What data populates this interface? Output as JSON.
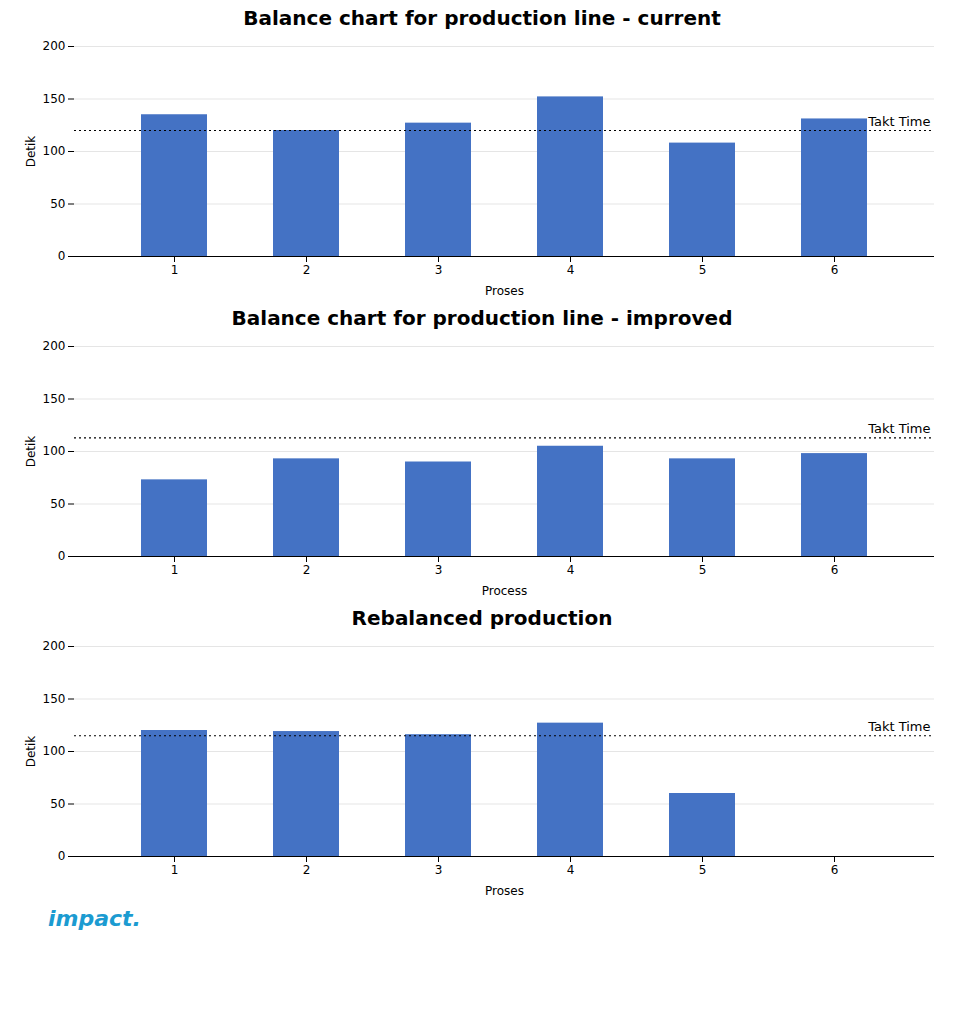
{
  "chart_data": [
    {
      "type": "bar",
      "title": "Balance chart for production line - current",
      "xlabel": "Proses",
      "ylabel": "Detik",
      "categories": [
        1,
        2,
        3,
        4,
        5,
        6
      ],
      "values": [
        135,
        120,
        127,
        152,
        108,
        131
      ],
      "color": "#4472C4",
      "takt_time": 120,
      "takt_label": "Takt Time",
      "ylim": [
        0,
        200
      ],
      "yticks": [
        0,
        50,
        100,
        150,
        200
      ],
      "grid": true
    },
    {
      "type": "bar",
      "title": "Balance chart for production line - improved",
      "xlabel": "Process",
      "ylabel": "Detik",
      "categories": [
        1,
        2,
        3,
        4,
        5,
        6
      ],
      "values": [
        73,
        93,
        90,
        105,
        93,
        98
      ],
      "color": "#4472C4",
      "takt_time": 113,
      "takt_label": "Takt Time",
      "ylim": [
        0,
        200
      ],
      "yticks": [
        0,
        50,
        100,
        150,
        200
      ],
      "grid": true
    },
    {
      "type": "bar",
      "title": "Rebalanced production",
      "xlabel": "Proses",
      "ylabel": "Detik",
      "categories": [
        1,
        2,
        3,
        4,
        5,
        6
      ],
      "values": [
        120,
        119,
        116,
        127,
        60,
        0
      ],
      "color": "#4472C4",
      "takt_time": 115,
      "takt_label": "Takt Time",
      "ylim": [
        0,
        200
      ],
      "yticks": [
        0,
        50,
        100,
        150,
        200
      ],
      "grid": true
    }
  ],
  "annotations": [
    {
      "text": "impact.",
      "color": "#1B9BD1"
    }
  ]
}
